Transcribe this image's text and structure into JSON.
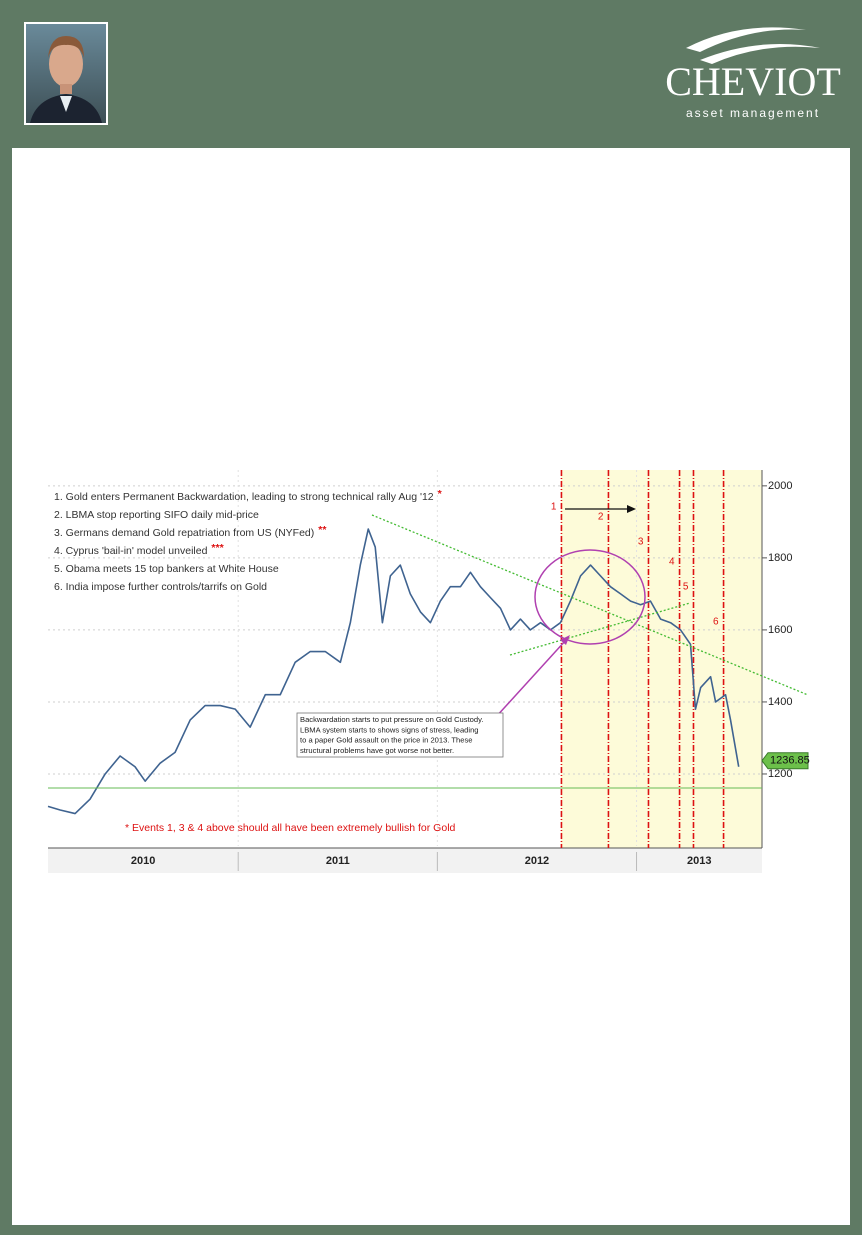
{
  "header": {
    "logo": {
      "name": "CHEVIOT",
      "tagline": "asset management"
    }
  },
  "chart_data": {
    "type": "line",
    "color": "#3f6390",
    "x": [
      2010.045,
      2010.106,
      2010.181,
      2010.256,
      2010.332,
      2010.407,
      2010.482,
      2010.533,
      2010.608,
      2010.683,
      2010.759,
      2010.834,
      2010.91,
      2010.985,
      2011.06,
      2011.136,
      2011.211,
      2011.286,
      2011.362,
      2011.437,
      2011.513,
      2011.563,
      2011.613,
      2011.653,
      2011.688,
      2011.724,
      2011.764,
      2011.814,
      2011.864,
      2011.915,
      2011.965,
      2012.015,
      2012.065,
      2012.116,
      2012.166,
      2012.216,
      2012.266,
      2012.317,
      2012.367,
      2012.417,
      2012.467,
      2012.518,
      2012.568,
      2012.618,
      2012.668,
      2012.719,
      2012.769,
      2012.819,
      2012.869,
      2012.92,
      2012.97,
      2013.02,
      2013.07,
      2013.121,
      2013.171,
      2013.221,
      2013.271,
      2013.296,
      2013.322,
      2013.372,
      2013.397,
      2013.447,
      2013.472,
      2013.513
    ],
    "values": [
      1110,
      1100,
      1090,
      1130,
      1200,
      1250,
      1220,
      1180,
      1230,
      1260,
      1350,
      1390,
      1390,
      1380,
      1330,
      1420,
      1420,
      1510,
      1540,
      1540,
      1510,
      1620,
      1780,
      1880,
      1830,
      1620,
      1750,
      1780,
      1700,
      1650,
      1620,
      1680,
      1720,
      1720,
      1760,
      1720,
      1690,
      1660,
      1600,
      1630,
      1600,
      1620,
      1600,
      1620,
      1680,
      1750,
      1780,
      1750,
      1720,
      1700,
      1680,
      1670,
      1680,
      1630,
      1620,
      1600,
      1560,
      1380,
      1440,
      1470,
      1400,
      1420,
      1350,
      1220
    ],
    "last_value": 1236.85,
    "xlim": [
      2010.045,
      2013.63
    ],
    "xticks": [
      2011,
      2012,
      2013
    ],
    "xlabels": [
      2010,
      2011,
      2012,
      2013
    ],
    "ylim": [
      1000,
      2044
    ],
    "yticks": [
      1200,
      1400,
      1600,
      1800,
      2000
    ],
    "grid": true,
    "events": [
      {
        "x": 2012.623,
        "label": "1"
      },
      {
        "x": 2012.859,
        "label": "2"
      },
      {
        "x": 2013.06,
        "label": "3"
      },
      {
        "x": 2013.216,
        "label": "4"
      },
      {
        "x": 2013.286,
        "label": "5"
      },
      {
        "x": 2013.437,
        "label": "6"
      }
    ],
    "notes": [
      {
        "text": "1. Gold enters Permanent Backwardation, leading to strong technical rally Aug '12",
        "mark": "*"
      },
      {
        "text": "2. LBMA stop reporting SIFO daily mid-price"
      },
      {
        "text": "3. Germans demand Gold repatriation from US (NYFed)",
        "mark": "**"
      },
      {
        "text": "4. Cyprus 'bail-in' model unveiled",
        "mark": "***"
      },
      {
        "text": "5. Obama meets 15 top bankers at White House"
      },
      {
        "text": "6. India impose further controls/tarrifs on Gold"
      }
    ],
    "callout": [
      "Backwardation starts to put pressure on Gold Custody.",
      "LBMA system starts to shows signs of stress, leading",
      "to a paper Gold assault on the price in 2013.  These",
      "structural problems have got worse not better."
    ],
    "footnote": "* Events 1, 3 & 4 above should all have been extremely bullish for Gold"
  }
}
